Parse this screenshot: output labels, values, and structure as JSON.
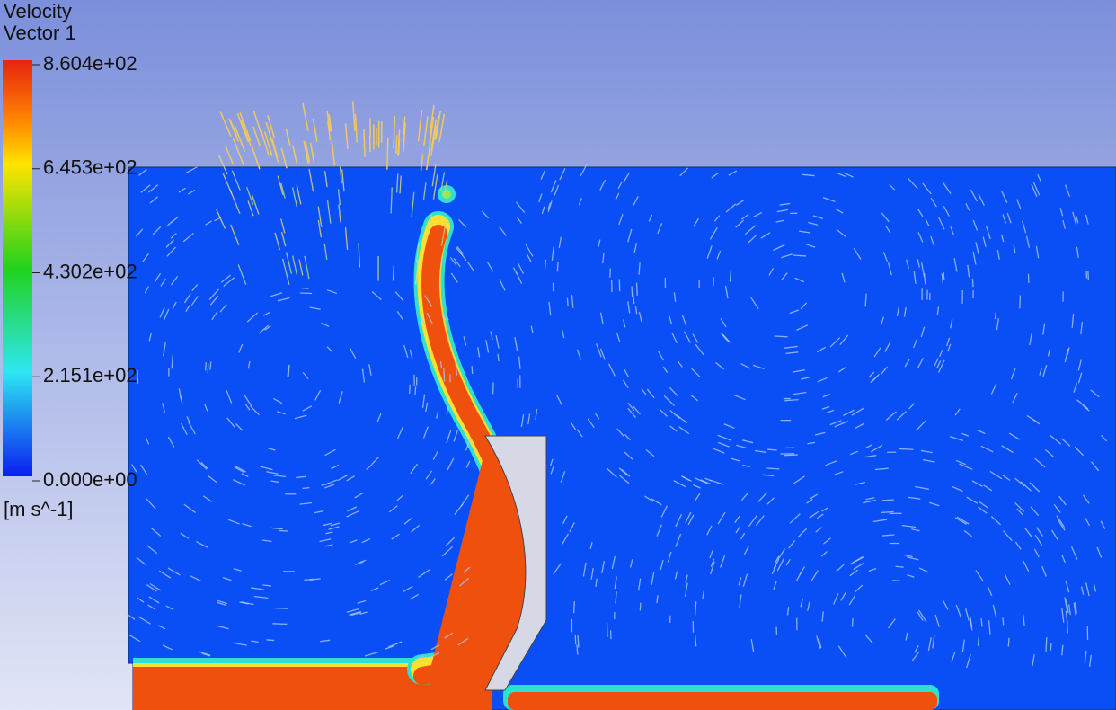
{
  "legend": {
    "title": [
      "Velocity",
      "Vector 1"
    ],
    "ticks": [
      "8.604e+02",
      "6.453e+02",
      "4.302e+02",
      "2.151e+02",
      "0.000e+00"
    ],
    "unit": "[m s^-1]"
  }
}
